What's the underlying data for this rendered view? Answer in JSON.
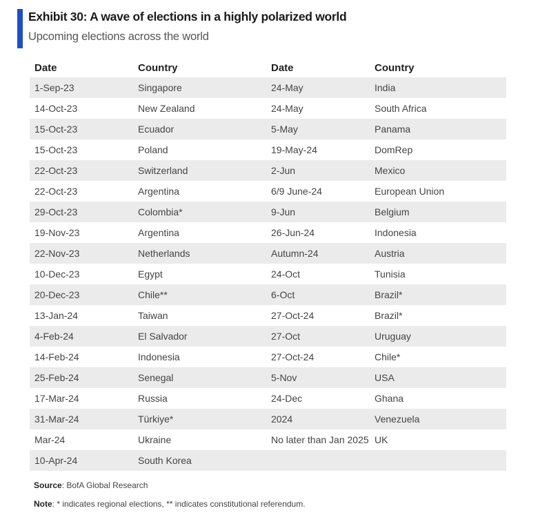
{
  "exhibit": {
    "title": "Exhibit 30: A wave of elections in a highly polarized world",
    "subtitle": "Upcoming elections across the world",
    "accent_color": "#1f4fc4"
  },
  "table": {
    "headers": [
      "Date",
      "Country",
      "Date",
      "Country"
    ],
    "rows": [
      [
        "1-Sep-23",
        "Singapore",
        "24-May",
        "India"
      ],
      [
        "14-Oct-23",
        "New Zealand",
        "24-May",
        "South Africa"
      ],
      [
        "15-Oct-23",
        "Ecuador",
        "5-May",
        "Panama"
      ],
      [
        "15-Oct-23",
        "Poland",
        "19-May-24",
        "DomRep"
      ],
      [
        "22-Oct-23",
        "Switzerland",
        "2-Jun",
        "Mexico"
      ],
      [
        "22-Oct-23",
        "Argentina",
        "6/9 June-24",
        "European Union"
      ],
      [
        "29-Oct-23",
        "Colombia*",
        "9-Jun",
        "Belgium"
      ],
      [
        "19-Nov-23",
        "Argentina",
        "26-Jun-24",
        "Indonesia"
      ],
      [
        "22-Nov-23",
        "Netherlands",
        "Autumn-24",
        "Austria"
      ],
      [
        "10-Dec-23",
        "Egypt",
        "24-Oct",
        "Tunisia"
      ],
      [
        "20-Dec-23",
        "Chile**",
        "6-Oct",
        "Brazil*"
      ],
      [
        "13-Jan-24",
        "Taiwan",
        "27-Oct-24",
        "Brazil*"
      ],
      [
        "4-Feb-24",
        "El Salvador",
        "27-Oct",
        "Uruguay"
      ],
      [
        "14-Feb-24",
        "Indonesia",
        "27-Oct-24",
        "Chile*"
      ],
      [
        "25-Feb-24",
        "Senegal",
        "5-Nov",
        "USA"
      ],
      [
        "17-Mar-24",
        "Russia",
        "24-Dec",
        "Ghana"
      ],
      [
        "31-Mar-24",
        "Türkiye*",
        "2024",
        "Venezuela"
      ],
      [
        "Mar-24",
        "Ukraine",
        "No later than Jan 2025",
        "UK"
      ],
      [
        "10-Apr-24",
        "South Korea",
        "",
        ""
      ]
    ]
  },
  "footer": {
    "source_label": "Source",
    "source_text": ": BofA Global Research",
    "note_label": "Note",
    "note_text": ": * indicates regional elections, ** indicates constitutional referendum."
  }
}
